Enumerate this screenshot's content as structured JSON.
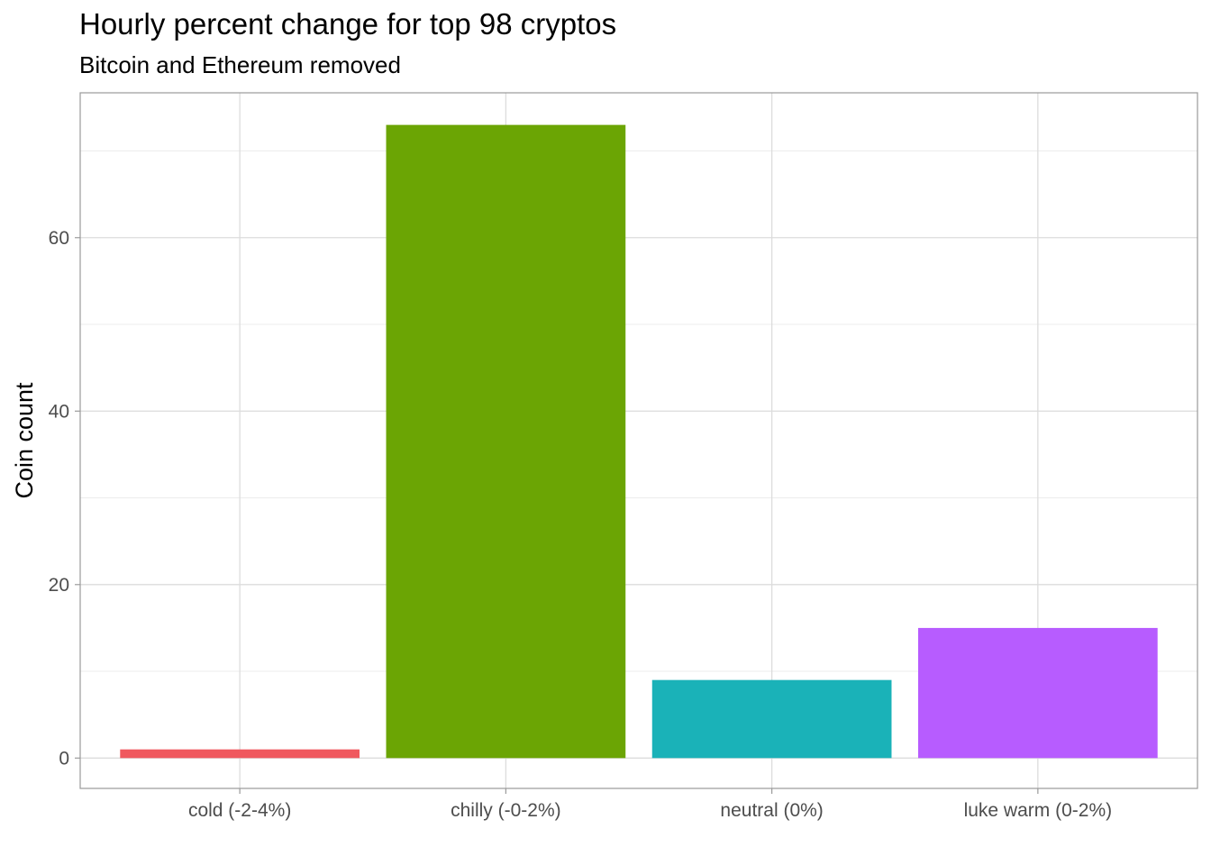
{
  "chart_data": {
    "type": "bar",
    "title": "Hourly percent change for top 98 cryptos",
    "subtitle": "Bitcoin and Ethereum removed",
    "xlabel": "",
    "ylabel": "Coin count",
    "categories": [
      "cold (-2-4%)",
      "chilly (-0-2%)",
      "neutral (0%)",
      "luke warm (0-2%)"
    ],
    "values": [
      1,
      73,
      9,
      15
    ],
    "colors": [
      "#F0585E",
      "#6BA504",
      "#1AB2B8",
      "#B75CFF"
    ],
    "y_ticks": [
      0,
      20,
      40,
      60
    ],
    "ylim": [
      -3.5,
      76.7
    ],
    "grid": true,
    "legend": "none"
  }
}
